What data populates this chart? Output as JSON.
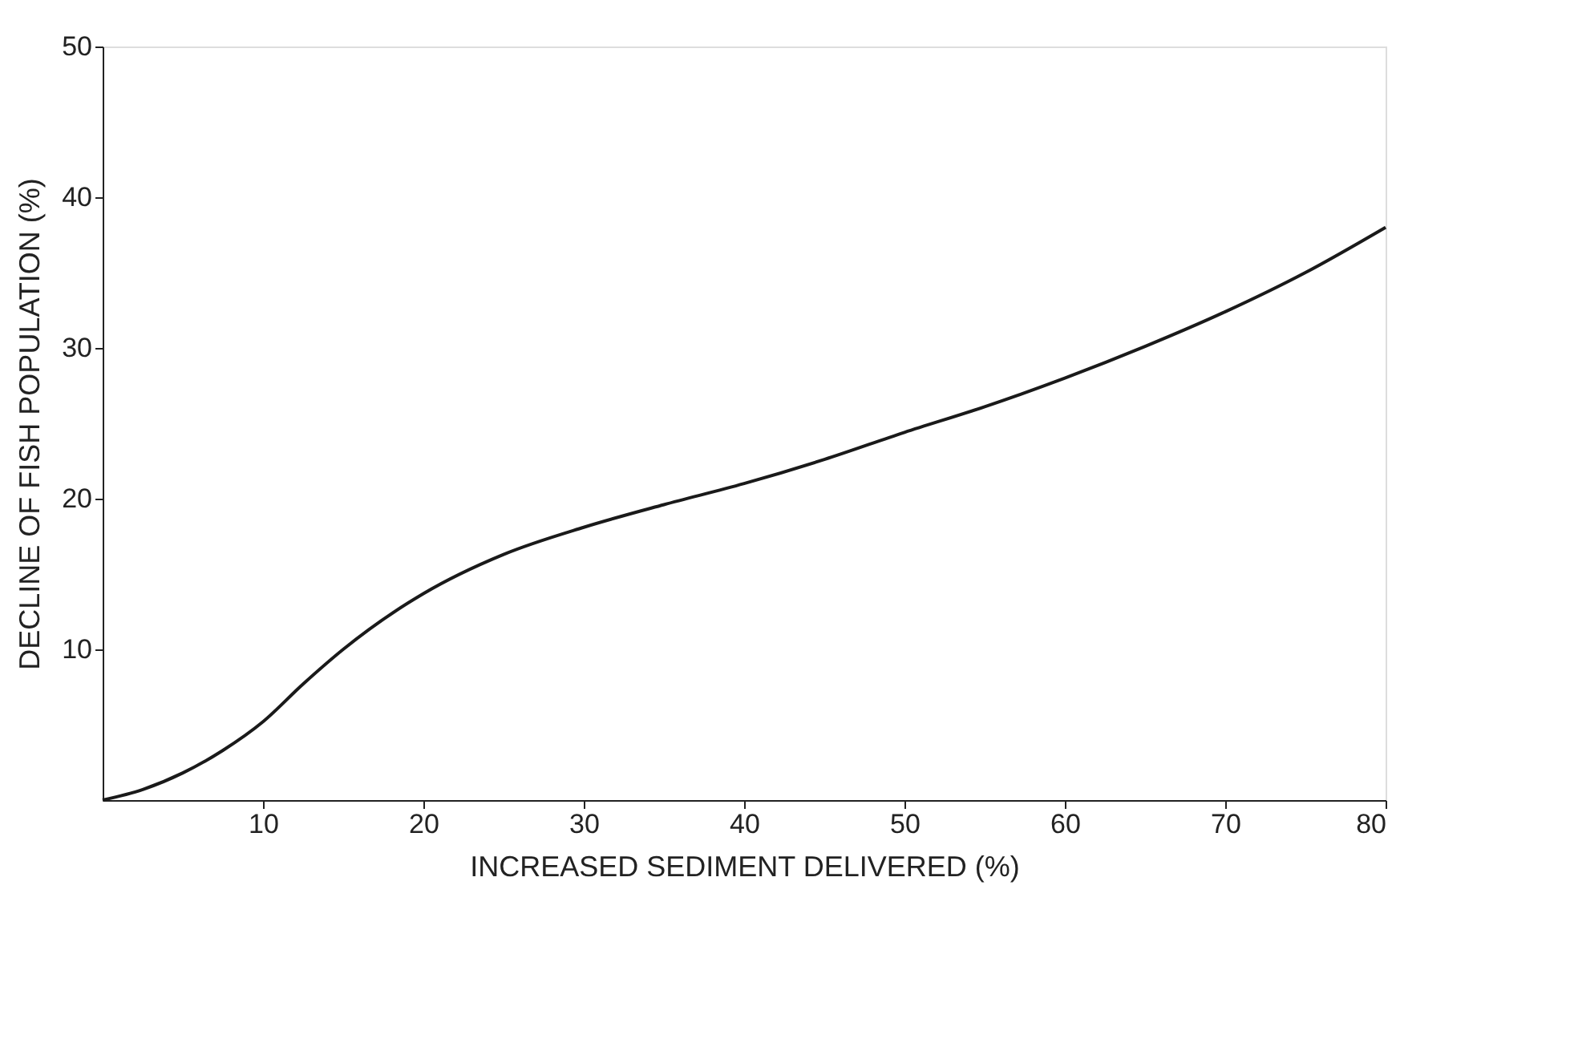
{
  "chart_data": {
    "type": "line",
    "xlabel": "INCREASED SEDIMENT DELIVERED (%)",
    "ylabel": "DECLINE OF FISH POPULATION (%)",
    "x": [
      0,
      2.5,
      5,
      7.5,
      10,
      12.5,
      15,
      20,
      25,
      30,
      35,
      40,
      45,
      50,
      55,
      60,
      65,
      70,
      75,
      80
    ],
    "series": [
      {
        "color": "#1a1a1a",
        "values": [
          0,
          0.7,
          1.8,
          3.3,
          5.2,
          7.7,
          10,
          13.7,
          16.3,
          18.1,
          19.6,
          21,
          22.6,
          24.4,
          26.1,
          28,
          30.1,
          32.4,
          35,
          38
        ]
      }
    ],
    "xlim": [
      0,
      80
    ],
    "ylim": [
      0,
      50
    ],
    "xticks": [
      10,
      20,
      30,
      40,
      50,
      60,
      70,
      80
    ],
    "yticks": [
      10,
      20,
      30,
      40,
      50
    ],
    "grid": false,
    "marker": "none",
    "line_style": "solid"
  }
}
